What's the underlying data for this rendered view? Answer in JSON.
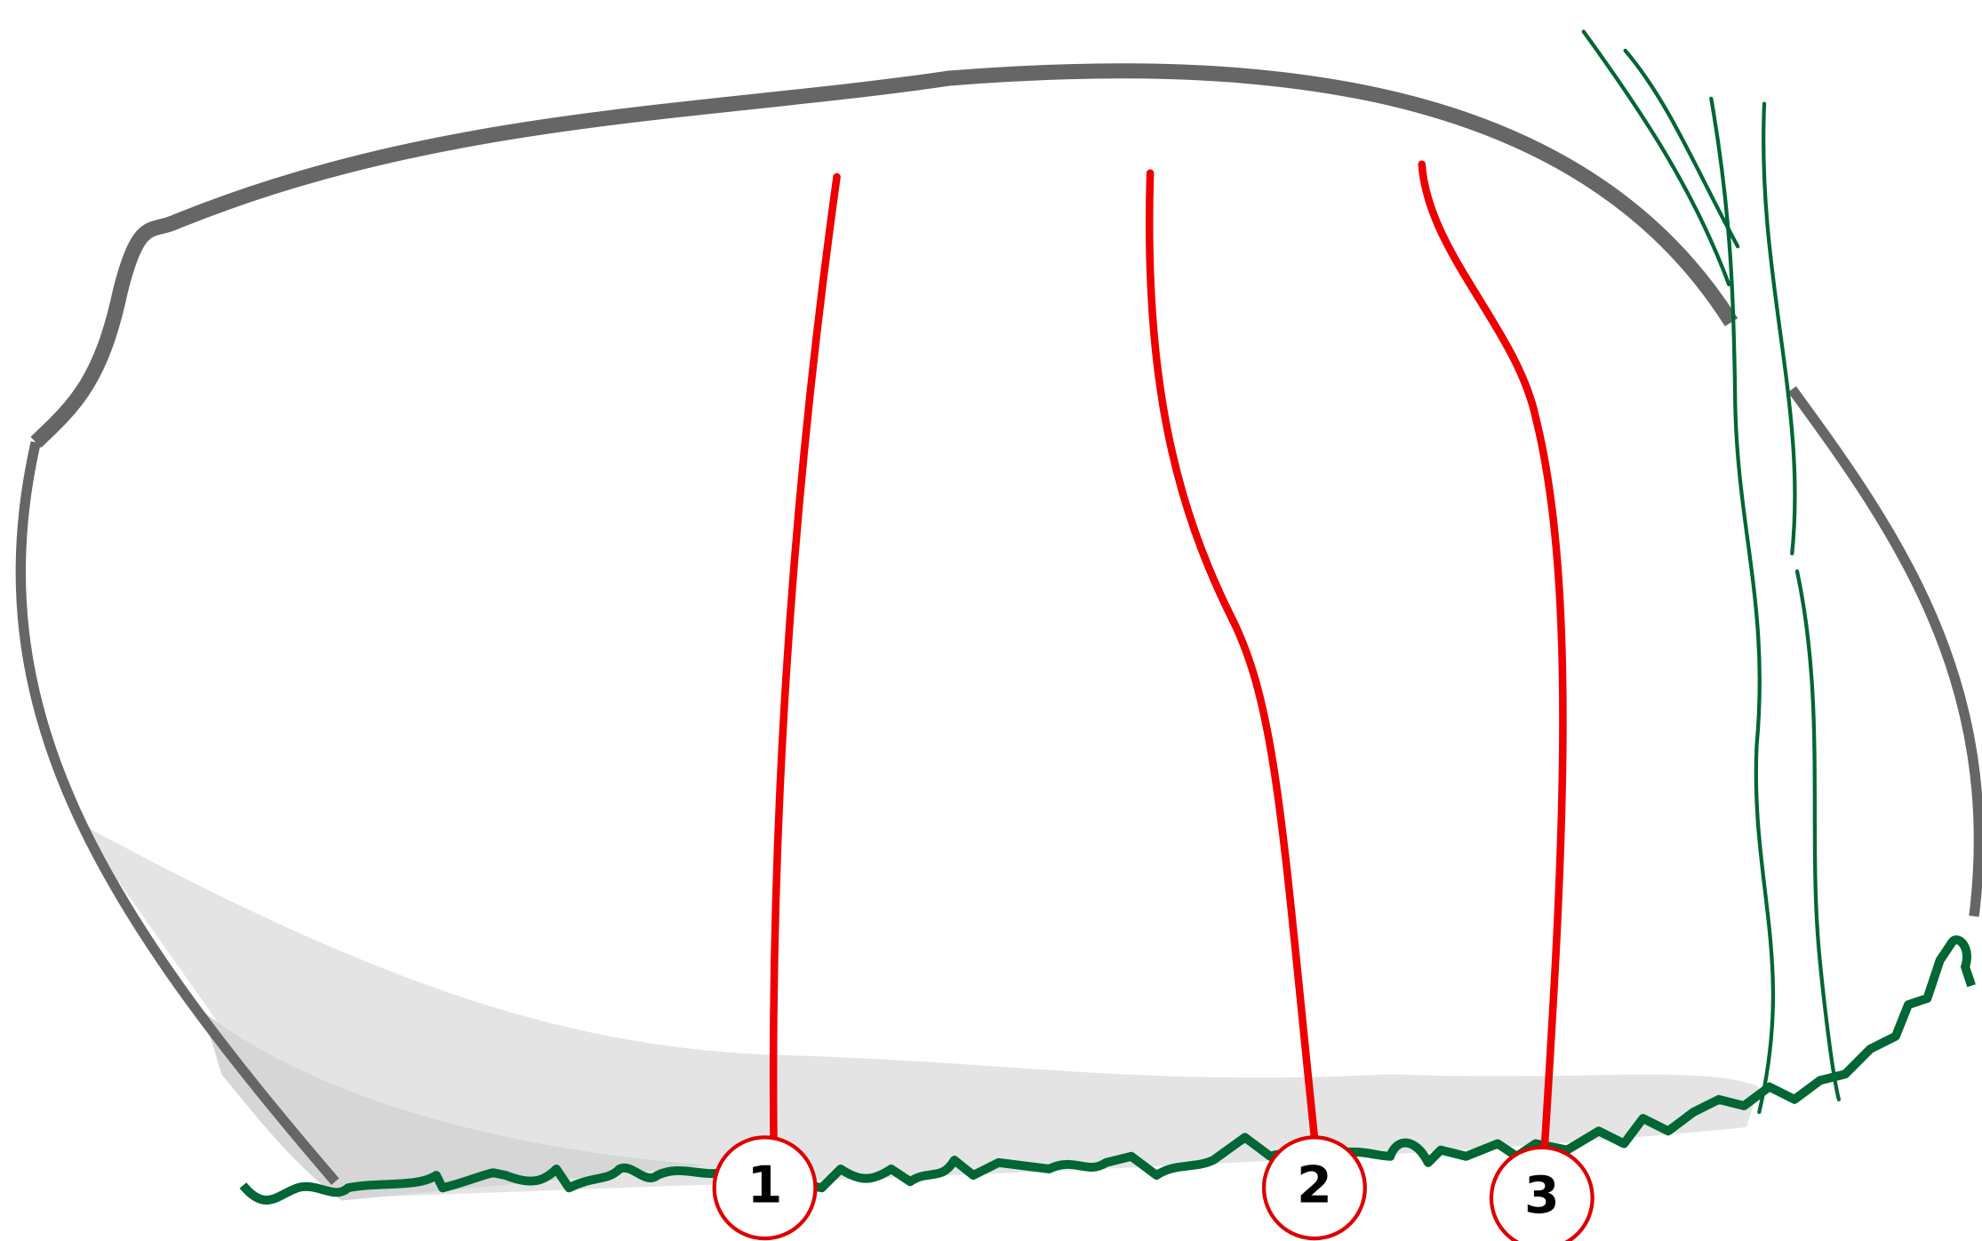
{
  "nodes": [
    {
      "label": "1"
    },
    {
      "label": "2"
    },
    {
      "label": "3"
    }
  ]
}
